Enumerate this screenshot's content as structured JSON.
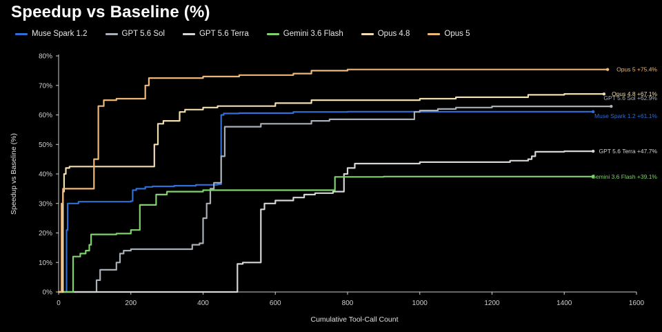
{
  "chart_data": {
    "type": "line",
    "title": "Speedup vs Baseline (%)",
    "xlabel": "Cumulative Tool-Call Count",
    "ylabel": "Speedup vs Baseline (%)",
    "xlim": [
      0,
      1600
    ],
    "ylim": [
      0,
      80
    ],
    "x_ticks": [
      0,
      200,
      400,
      600,
      800,
      1000,
      1200,
      1400,
      1600
    ],
    "y_ticks": [
      0,
      10,
      20,
      30,
      40,
      50,
      60,
      70,
      80
    ],
    "y_tick_labels": [
      "0%",
      "10%",
      "20%",
      "30%",
      "40%",
      "50%",
      "60%",
      "70%",
      "80%"
    ],
    "x_tick_labels": [
      "0",
      "200",
      "400",
      "600",
      "800",
      "1000",
      "1200",
      "1400",
      "1600"
    ],
    "grid": false,
    "legend_position": "top",
    "series": [
      {
        "name": "Muse Spark 1.2",
        "color": "#2f6fd6",
        "end_label": "Muse Spark 1.2 +61.1%",
        "points": [
          [
            0,
            0
          ],
          [
            20,
            0
          ],
          [
            22,
            21
          ],
          [
            25,
            30
          ],
          [
            50,
            30
          ],
          [
            55,
            30.6
          ],
          [
            150,
            30.6
          ],
          [
            200,
            30.8
          ],
          [
            205,
            34.5
          ],
          [
            215,
            35
          ],
          [
            240,
            35.6
          ],
          [
            260,
            35.8
          ],
          [
            320,
            36
          ],
          [
            380,
            36.3
          ],
          [
            440,
            36.5
          ],
          [
            450,
            60
          ],
          [
            457,
            60.5
          ],
          [
            500,
            60.6
          ],
          [
            650,
            61
          ],
          [
            800,
            61.1
          ],
          [
            1000,
            61.1
          ],
          [
            1480,
            61.1
          ]
        ]
      },
      {
        "name": "GPT 5.6 Sol",
        "color": "#a9b0b8",
        "end_label": "GPT 5.6 Sol +62.9%",
        "points": [
          [
            0,
            0
          ],
          [
            100,
            0
          ],
          [
            105,
            4
          ],
          [
            115,
            7.5
          ],
          [
            150,
            7.5
          ],
          [
            160,
            10
          ],
          [
            170,
            13
          ],
          [
            180,
            14
          ],
          [
            200,
            14.5
          ],
          [
            300,
            14.5
          ],
          [
            350,
            14.5
          ],
          [
            370,
            16
          ],
          [
            390,
            16.5
          ],
          [
            400,
            25
          ],
          [
            410,
            30
          ],
          [
            420,
            35
          ],
          [
            430,
            37
          ],
          [
            450,
            46
          ],
          [
            460,
            56
          ],
          [
            540,
            56
          ],
          [
            560,
            57
          ],
          [
            700,
            58
          ],
          [
            750,
            58.5
          ],
          [
            980,
            58.5
          ],
          [
            985,
            61
          ],
          [
            1000,
            61.5
          ],
          [
            1050,
            62
          ],
          [
            1100,
            62.5
          ],
          [
            1200,
            62.9
          ],
          [
            1530,
            62.9
          ]
        ]
      },
      {
        "name": "GPT 5.6 Terra",
        "color": "#d4d6d8",
        "end_label": "GPT 5.6 Terra +47.7%",
        "points": [
          [
            0,
            0
          ],
          [
            490,
            0
          ],
          [
            495,
            9.5
          ],
          [
            510,
            10
          ],
          [
            550,
            10
          ],
          [
            560,
            28
          ],
          [
            570,
            30
          ],
          [
            600,
            31
          ],
          [
            650,
            32
          ],
          [
            680,
            33
          ],
          [
            710,
            33.5
          ],
          [
            760,
            34
          ],
          [
            790,
            40
          ],
          [
            800,
            42
          ],
          [
            820,
            43.5
          ],
          [
            900,
            43.5
          ],
          [
            1000,
            44
          ],
          [
            1150,
            44
          ],
          [
            1250,
            44.5
          ],
          [
            1300,
            45
          ],
          [
            1310,
            46
          ],
          [
            1320,
            47.5
          ],
          [
            1400,
            47.7
          ],
          [
            1480,
            47.7
          ]
        ]
      },
      {
        "name": "Gemini 3.6 Flash",
        "color": "#7ed36a",
        "end_label": "Gemini 3.6 Flash +39.1%",
        "points": [
          [
            0,
            0
          ],
          [
            35,
            0
          ],
          [
            40,
            12
          ],
          [
            60,
            13
          ],
          [
            75,
            14
          ],
          [
            85,
            16
          ],
          [
            90,
            19.5
          ],
          [
            110,
            19.5
          ],
          [
            160,
            19.8
          ],
          [
            200,
            21
          ],
          [
            225,
            29.5
          ],
          [
            260,
            29.5
          ],
          [
            270,
            33
          ],
          [
            300,
            34
          ],
          [
            400,
            34.5
          ],
          [
            500,
            34.5
          ],
          [
            760,
            34.5
          ],
          [
            765,
            39
          ],
          [
            900,
            39.1
          ],
          [
            1480,
            39.1
          ]
        ]
      },
      {
        "name": "Opus 4.8",
        "color": "#f2ddb0",
        "end_label": "Opus 4.8 +67.1%",
        "points": [
          [
            0,
            0
          ],
          [
            10,
            0
          ],
          [
            12,
            34
          ],
          [
            15,
            40
          ],
          [
            20,
            42
          ],
          [
            30,
            42.5
          ],
          [
            100,
            42.5
          ],
          [
            200,
            42.5
          ],
          [
            260,
            42.5
          ],
          [
            265,
            50
          ],
          [
            275,
            57
          ],
          [
            290,
            58
          ],
          [
            330,
            58
          ],
          [
            335,
            61
          ],
          [
            350,
            61.8
          ],
          [
            400,
            62.5
          ],
          [
            440,
            63
          ],
          [
            600,
            64
          ],
          [
            700,
            65
          ],
          [
            900,
            65
          ],
          [
            1000,
            65.5
          ],
          [
            1100,
            66
          ],
          [
            1300,
            66.8
          ],
          [
            1400,
            67.1
          ],
          [
            1510,
            67.1
          ]
        ]
      },
      {
        "name": "Opus 5",
        "color": "#f0b878",
        "end_label": "Opus 5 +75.4%",
        "points": [
          [
            0,
            0
          ],
          [
            5,
            0
          ],
          [
            8,
            30
          ],
          [
            12,
            35
          ],
          [
            90,
            35
          ],
          [
            98,
            45
          ],
          [
            110,
            63
          ],
          [
            125,
            65
          ],
          [
            160,
            65.5
          ],
          [
            200,
            65.5
          ],
          [
            235,
            65.5
          ],
          [
            240,
            70
          ],
          [
            250,
            72.5
          ],
          [
            300,
            72.5
          ],
          [
            400,
            73
          ],
          [
            500,
            73.5
          ],
          [
            650,
            74
          ],
          [
            700,
            75
          ],
          [
            800,
            75.4
          ],
          [
            1000,
            75.4
          ],
          [
            1520,
            75.4
          ]
        ]
      }
    ]
  }
}
